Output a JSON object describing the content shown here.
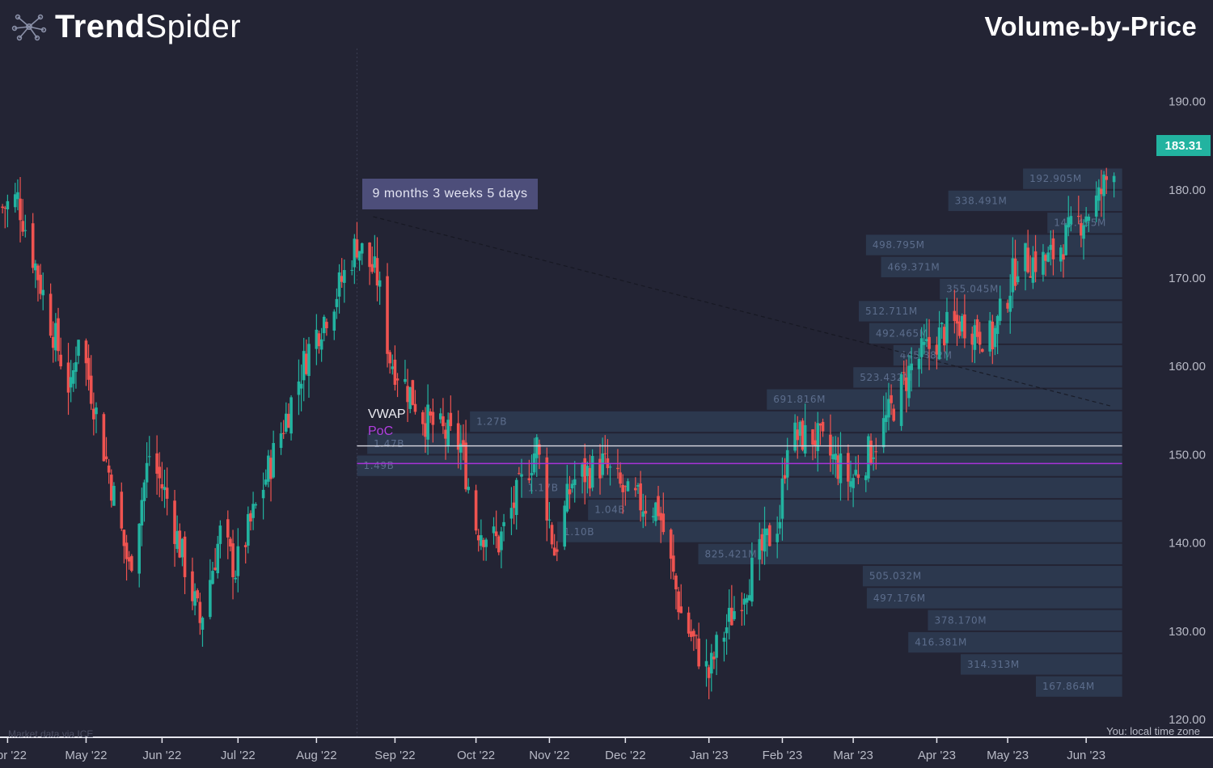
{
  "brand": {
    "name_bold": "Trend",
    "name_light": "Spider"
  },
  "title": "Volume-by-Price",
  "timezone_note": "You: local time zone",
  "source_note": "Market data via ICE",
  "measure_label": "9 months 3 weeks 5 days",
  "last_price": "183.31",
  "colors": {
    "background": "#232434",
    "up": "#22b3a0",
    "down": "#ef5350",
    "vwap": "#d9d9e2",
    "poc": "#a832d8",
    "vbp_bar": "#2e3c54",
    "badge": "#22b3a0"
  },
  "chart_data": {
    "type": "candlestick",
    "title": "Volume-by-Price",
    "y_axis": {
      "ticks": [
        120,
        130,
        140,
        150,
        160,
        170,
        180,
        190
      ],
      "tick_labels": [
        "120.00",
        "130.00",
        "140.00",
        "150.00",
        "160.00",
        "170.00",
        "180.00",
        "190.00"
      ],
      "range": [
        118,
        196
      ],
      "side": "right"
    },
    "x_axis": {
      "labels": [
        "Apr '22",
        "May '22",
        "Jun '22",
        "Jul '22",
        "Aug '22",
        "Sep '22",
        "Oct '22",
        "Nov '22",
        "Dec '22",
        "Jan '23",
        "Feb '23",
        "Mar '23",
        "Apr '23",
        "May '23",
        "Jun '23"
      ],
      "label_dates": [
        "2022-04-01",
        "2022-05-02",
        "2022-06-01",
        "2022-07-01",
        "2022-08-01",
        "2022-09-01",
        "2022-10-03",
        "2022-11-01",
        "2022-12-01",
        "2023-01-03",
        "2023-02-01",
        "2023-03-01",
        "2023-04-03",
        "2023-05-01",
        "2023-06-01"
      ]
    },
    "price_path": [
      {
        "date": "2022-03-30",
        "close": 178
      },
      {
        "date": "2022-04-05",
        "close": 179
      },
      {
        "date": "2022-04-18",
        "close": 165
      },
      {
        "date": "2022-04-26",
        "close": 157
      },
      {
        "date": "2022-04-29",
        "close": 164
      },
      {
        "date": "2022-05-11",
        "close": 148
      },
      {
        "date": "2022-05-19",
        "close": 137
      },
      {
        "date": "2022-05-27",
        "close": 150
      },
      {
        "date": "2022-06-03",
        "close": 145
      },
      {
        "date": "2022-06-16",
        "close": 131
      },
      {
        "date": "2022-06-24",
        "close": 141
      },
      {
        "date": "2022-06-30",
        "close": 137
      },
      {
        "date": "2022-07-15",
        "close": 150
      },
      {
        "date": "2022-07-29",
        "close": 162
      },
      {
        "date": "2022-08-10",
        "close": 169
      },
      {
        "date": "2022-08-17",
        "close": 174
      },
      {
        "date": "2022-08-25",
        "close": 170
      },
      {
        "date": "2022-08-30",
        "close": 161
      },
      {
        "date": "2022-09-13",
        "close": 154
      },
      {
        "date": "2022-09-27",
        "close": 151
      },
      {
        "date": "2022-10-03",
        "close": 142
      },
      {
        "date": "2022-10-12",
        "close": 140
      },
      {
        "date": "2022-10-27",
        "close": 151
      },
      {
        "date": "2022-11-03",
        "close": 139
      },
      {
        "date": "2022-11-10",
        "close": 147
      },
      {
        "date": "2022-11-22",
        "close": 149
      },
      {
        "date": "2022-12-02",
        "close": 145
      },
      {
        "date": "2022-12-14",
        "close": 144
      },
      {
        "date": "2022-12-23",
        "close": 132
      },
      {
        "date": "2023-01-03",
        "close": 125
      },
      {
        "date": "2023-01-06",
        "close": 128
      },
      {
        "date": "2023-01-17",
        "close": 135
      },
      {
        "date": "2023-01-31",
        "close": 143
      },
      {
        "date": "2023-02-03",
        "close": 152
      },
      {
        "date": "2023-02-14",
        "close": 152
      },
      {
        "date": "2023-02-28",
        "close": 147
      },
      {
        "date": "2023-03-09",
        "close": 151
      },
      {
        "date": "2023-03-16",
        "close": 155
      },
      {
        "date": "2023-03-24",
        "close": 160
      },
      {
        "date": "2023-04-06",
        "close": 164
      },
      {
        "date": "2023-04-14",
        "close": 165
      },
      {
        "date": "2023-04-25",
        "close": 163
      },
      {
        "date": "2023-05-05",
        "close": 172
      },
      {
        "date": "2023-05-17",
        "close": 172
      },
      {
        "date": "2023-05-31",
        "close": 177
      },
      {
        "date": "2023-06-06",
        "close": 179
      },
      {
        "date": "2023-06-12",
        "close": 183.31
      }
    ],
    "vwap": 151,
    "poc": 149,
    "measure_range": {
      "start": "2022-08-17",
      "end": "2023-06-12",
      "label": "9 months 3 weeks 5 days"
    },
    "volume_by_price": [
      {
        "price_low": 180.0,
        "price_high": 182.5,
        "volume": "192.905M"
      },
      {
        "price_low": 177.5,
        "price_high": 180.0,
        "volume": "338.491M"
      },
      {
        "price_low": 175.0,
        "price_high": 177.5,
        "volume": "145.495M"
      },
      {
        "price_low": 172.5,
        "price_high": 175.0,
        "volume": "498.795M"
      },
      {
        "price_low": 170.0,
        "price_high": 172.5,
        "volume": "469.371M"
      },
      {
        "price_low": 167.5,
        "price_high": 170.0,
        "volume": "355.045M"
      },
      {
        "price_low": 165.0,
        "price_high": 167.5,
        "volume": "512.711M"
      },
      {
        "price_low": 162.5,
        "price_high": 165.0,
        "volume": "492.465M"
      },
      {
        "price_low": 160.0,
        "price_high": 162.5,
        "volume": "445.382M"
      },
      {
        "price_low": 157.5,
        "price_high": 160.0,
        "volume": "523.432M"
      },
      {
        "price_low": 155.0,
        "price_high": 157.5,
        "volume": "691.816M"
      },
      {
        "price_low": 152.5,
        "price_high": 155.0,
        "volume": "1.27B"
      },
      {
        "price_low": 150.0,
        "price_high": 152.5,
        "volume": "1.47B"
      },
      {
        "price_low": 147.5,
        "price_high": 150.0,
        "volume": "1.49B"
      },
      {
        "price_low": 145.0,
        "price_high": 147.5,
        "volume": "1.17B"
      },
      {
        "price_low": 142.5,
        "price_high": 145.0,
        "volume": "1.04B"
      },
      {
        "price_low": 140.0,
        "price_high": 142.5,
        "volume": "1.10B"
      },
      {
        "price_low": 137.5,
        "price_high": 140.0,
        "volume": "825.421M"
      },
      {
        "price_low": 135.0,
        "price_high": 137.5,
        "volume": "505.032M"
      },
      {
        "price_low": 132.5,
        "price_high": 135.0,
        "volume": "497.176M"
      },
      {
        "price_low": 130.0,
        "price_high": 132.5,
        "volume": "378.170M"
      },
      {
        "price_low": 127.5,
        "price_high": 130.0,
        "volume": "416.381M"
      },
      {
        "price_low": 125.0,
        "price_high": 127.5,
        "volume": "314.313M"
      },
      {
        "price_low": 122.5,
        "price_high": 125.0,
        "volume": "167.864M"
      }
    ],
    "volume_label_values": [
      "192.905M",
      "338.491M",
      "145.495M",
      "498.795M",
      "469.371M",
      "355.045M",
      "512.711M",
      "492.465M",
      "445.382M",
      "523.432M",
      "691.816M",
      "1.27B",
      "1.47B",
      "1.49B",
      "1.17B",
      "1.04B",
      "1.10B",
      "825.421M",
      "505.032M",
      "497.176M",
      "378.170M",
      "416.381M",
      "314.313M",
      "167.864M"
    ],
    "series": [
      {
        "name": "VWAP",
        "value": 151
      },
      {
        "name": "PoC",
        "value": 149
      }
    ],
    "legend": "none",
    "grid": false
  }
}
